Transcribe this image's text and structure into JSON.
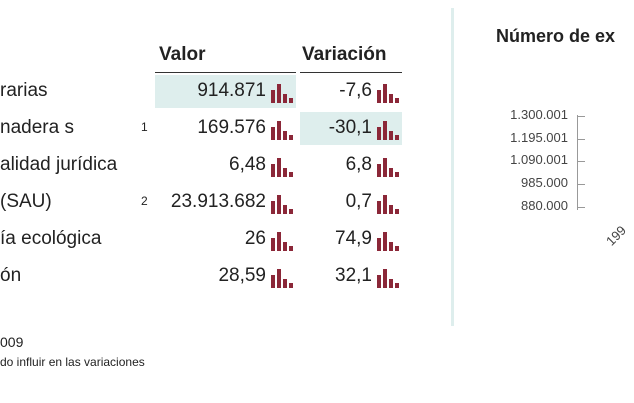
{
  "table": {
    "headers": {
      "valor": "Valor",
      "variacion": "Variación"
    },
    "rows": [
      {
        "label": "rarias",
        "note": "",
        "value": "914.871",
        "variation": "-7,6"
      },
      {
        "label": "nadera s",
        "note": "1",
        "value": "169.576",
        "variation": "-30,1"
      },
      {
        "label": "alidad jurídica",
        "note": "",
        "value": "6,48",
        "variation": "6,8"
      },
      {
        "label": "(SAU)",
        "note": "2",
        "value": "23.913.682",
        "variation": "0,7"
      },
      {
        "label": "ía ecológica",
        "note": "",
        "value": "26",
        "variation": "74,9"
      },
      {
        "label": "ón",
        "note": "",
        "value": "28,59",
        "variation": "32,1"
      }
    ]
  },
  "footnotes": {
    "line1": "009",
    "line2": "do influir en las variaciones"
  },
  "chart": {
    "title": "Número de ex",
    "y_ticks": [
      "1.300.001",
      "1.195.001",
      "1.090.001",
      "985.000",
      "880.000"
    ],
    "x_tick": "199"
  },
  "colors": {
    "bar_icon": "#8b2738",
    "highlight": "#deeeed"
  },
  "icons": {
    "row_chart": "bar-chart-icon"
  }
}
